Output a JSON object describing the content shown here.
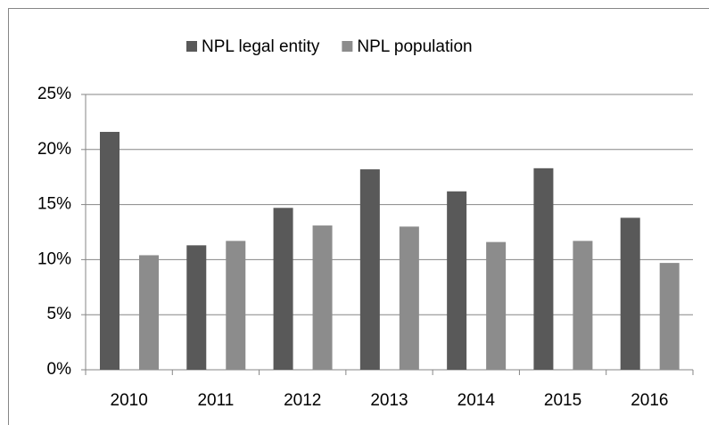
{
  "chart_data": {
    "type": "bar",
    "categories": [
      "2010",
      "2011",
      "2012",
      "2013",
      "2014",
      "2015",
      "2016"
    ],
    "series": [
      {
        "name": "NPL legal entity",
        "color": "#595959",
        "values": [
          21.6,
          11.3,
          14.7,
          18.2,
          16.2,
          18.3,
          13.8
        ]
      },
      {
        "name": "NPL population",
        "color": "#8c8c8c",
        "values": [
          10.4,
          11.7,
          13.1,
          13.0,
          11.6,
          11.7,
          9.7
        ]
      }
    ],
    "ylim": [
      0,
      25
    ],
    "yticks": [
      {
        "value": 0,
        "label": "0%"
      },
      {
        "value": 5,
        "label": "5%"
      },
      {
        "value": 10,
        "label": "10%"
      },
      {
        "value": 15,
        "label": "15%"
      },
      {
        "value": 20,
        "label": "20%"
      },
      {
        "value": 25,
        "label": "25%"
      }
    ],
    "grid": true,
    "legend": "top"
  }
}
